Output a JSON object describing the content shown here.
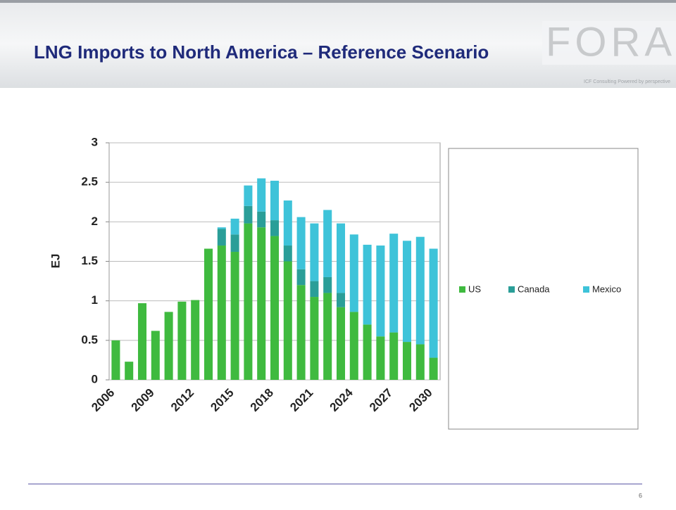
{
  "header": {
    "title": "LNG Imports to North America – Reference Scenario",
    "logo": "FORA",
    "logo_tagline": "ICF Consulting  Powered by perspective"
  },
  "page_number": "6",
  "chart_data": {
    "type": "stacked_bar",
    "y_label": "EJ",
    "categories": [
      "2006",
      null,
      null,
      "2009",
      null,
      null,
      "2012",
      null,
      null,
      "2015",
      null,
      null,
      "2018",
      null,
      null,
      "2021",
      null,
      null,
      "2024",
      null,
      null,
      "2027",
      null,
      null,
      "2030"
    ],
    "series": [
      {
        "name": "US",
        "color": "#3fba3f",
        "values": [
          0.5,
          0.23,
          0.97,
          0.62,
          0.86,
          0.99,
          1.01,
          1.66,
          1.7,
          1.62,
          1.98,
          1.93,
          1.82,
          1.5,
          1.2,
          1.05,
          1.1,
          0.92,
          0.86,
          0.7,
          0.55,
          0.6,
          0.48,
          0.45,
          0.28
        ]
      },
      {
        "name": "Canada",
        "color": "#2a9e98",
        "values": [
          0,
          0,
          0,
          0,
          0,
          0,
          0,
          0,
          0.21,
          0.22,
          0.22,
          0.2,
          0.2,
          0.2,
          0.2,
          0.2,
          0.2,
          0.18,
          0,
          0,
          0,
          0,
          0,
          0,
          0
        ]
      },
      {
        "name": "Mexico",
        "color": "#3ec3d9",
        "values": [
          0,
          0,
          0,
          0,
          0,
          0,
          0,
          0,
          0.02,
          0.2,
          0.26,
          0.42,
          0.5,
          0.57,
          0.66,
          0.73,
          0.85,
          0.88,
          0.98,
          1.01,
          1.15,
          1.25,
          1.28,
          1.36,
          1.38
        ]
      }
    ],
    "ylim": [
      0,
      3
    ],
    "yticks": [
      0,
      0.5,
      1,
      1.5,
      2,
      2.5,
      3
    ],
    "grid": true,
    "legend": "right"
  }
}
